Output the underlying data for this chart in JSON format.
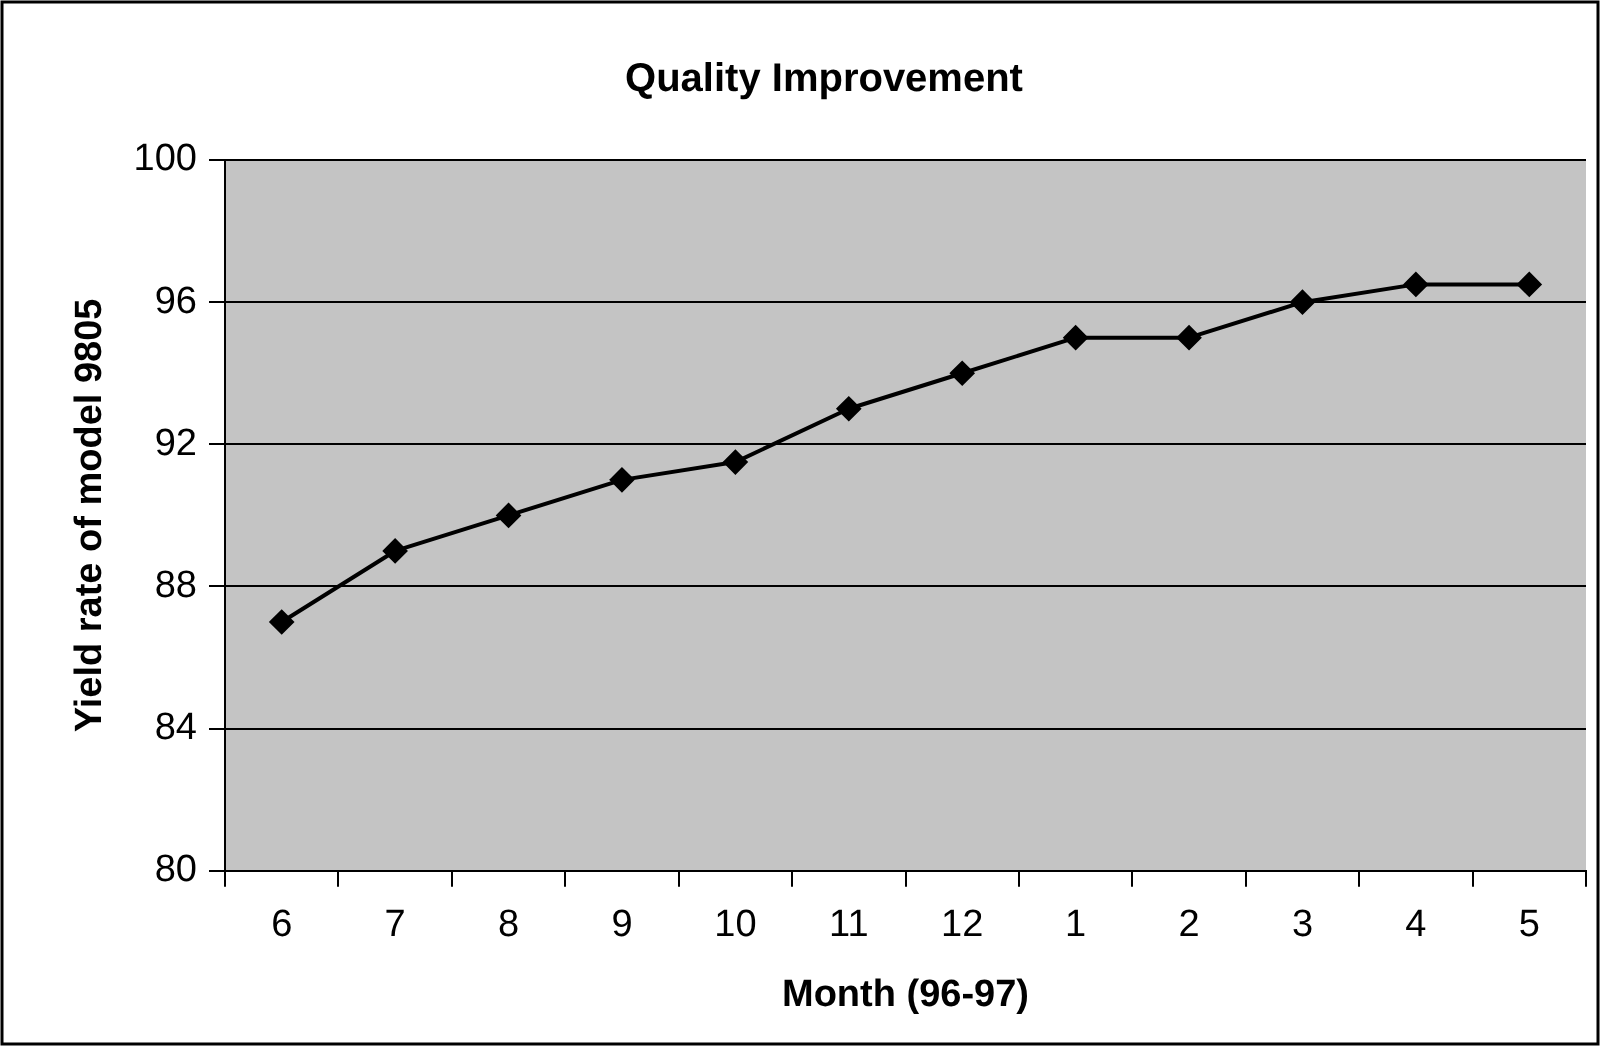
{
  "chart_data": {
    "type": "line",
    "title": "Quality Improvement",
    "xlabel": "Month (96-97)",
    "ylabel": "Yield rate of model 9805",
    "categories": [
      "6",
      "7",
      "8",
      "9",
      "10",
      "11",
      "12",
      "1",
      "2",
      "3",
      "4",
      "5"
    ],
    "series": [
      {
        "color": "#000000",
        "values": [
          87,
          89,
          90,
          91,
          91.5,
          93,
          94,
          95,
          95,
          96,
          96.5,
          96.5
        ]
      }
    ],
    "ylim": [
      80,
      100
    ],
    "yticks": [
      80,
      84,
      88,
      92,
      96,
      100
    ],
    "grid": "y",
    "legend": false,
    "marker": "diamond",
    "line_style": "solid"
  }
}
